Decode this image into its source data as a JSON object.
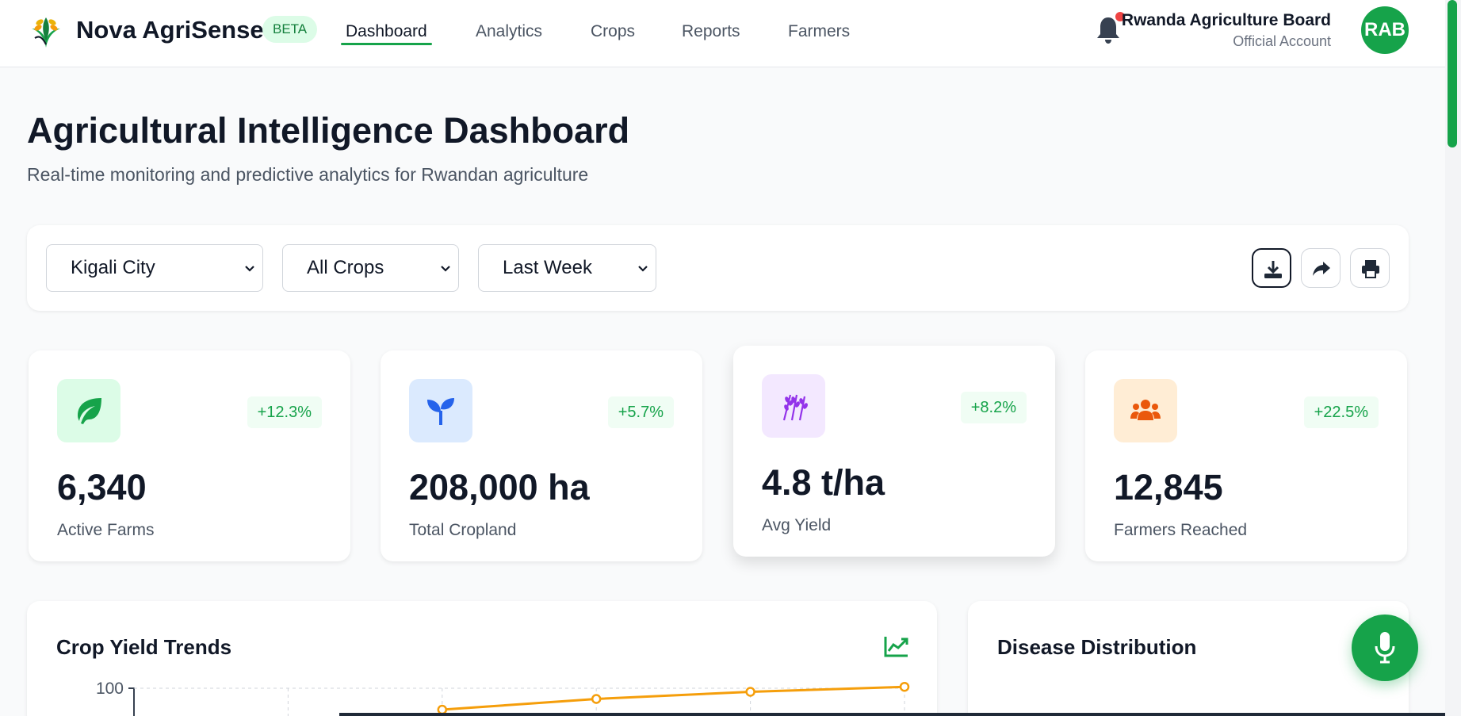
{
  "header": {
    "brand": "Nova AgriSense",
    "badge": "BETA",
    "nav": [
      {
        "label": "Dashboard",
        "active": true
      },
      {
        "label": "Analytics",
        "active": false
      },
      {
        "label": "Crops",
        "active": false
      },
      {
        "label": "Reports",
        "active": false
      },
      {
        "label": "Farmers",
        "active": false
      }
    ],
    "user": {
      "name": "Rwanda Agriculture Board",
      "role": "Official Account",
      "initials": "RAB"
    },
    "icons": {
      "logo": "wheat-leaf-logo-icon",
      "bell": "bell-icon"
    }
  },
  "page": {
    "title": "Agricultural Intelligence Dashboard",
    "subtitle": "Real-time monitoring and predictive analytics for Rwandan agriculture"
  },
  "filters": {
    "region": "Kigali City",
    "crop": "All Crops",
    "period": "Last Week",
    "actions": [
      "download-icon",
      "share-icon",
      "print-icon"
    ]
  },
  "stats": [
    {
      "value": "6,340",
      "label": "Active Farms",
      "delta": "+12.3%",
      "icon": "leaf-icon",
      "color": "#16a34a",
      "bg": "#dcfce7"
    },
    {
      "value": "208,000 ha",
      "label": "Total Cropland",
      "delta": "+5.7%",
      "icon": "seedling-icon",
      "color": "#2563eb",
      "bg": "#dbeafe"
    },
    {
      "value": "4.8 t/ha",
      "label": "Avg Yield",
      "delta": "+8.2%",
      "icon": "wheat-icon",
      "color": "#9333ea",
      "bg": "#f3e8ff"
    },
    {
      "value": "12,845",
      "label": "Farmers Reached",
      "delta": "+22.5%",
      "icon": "users-icon",
      "color": "#ea580c",
      "bg": "#ffedd5"
    }
  ],
  "panels": {
    "trends_title": "Crop Yield Trends",
    "disease_title": "Disease Distribution"
  },
  "chart_data": {
    "type": "line",
    "title": "Crop Yield Trends",
    "y_tick_visible": "100",
    "series": [
      {
        "values": [
          null,
          null,
          97,
          98.5,
          99.5,
          100.2
        ]
      }
    ],
    "color": "#f59e0b"
  },
  "accent": "#16a34a"
}
